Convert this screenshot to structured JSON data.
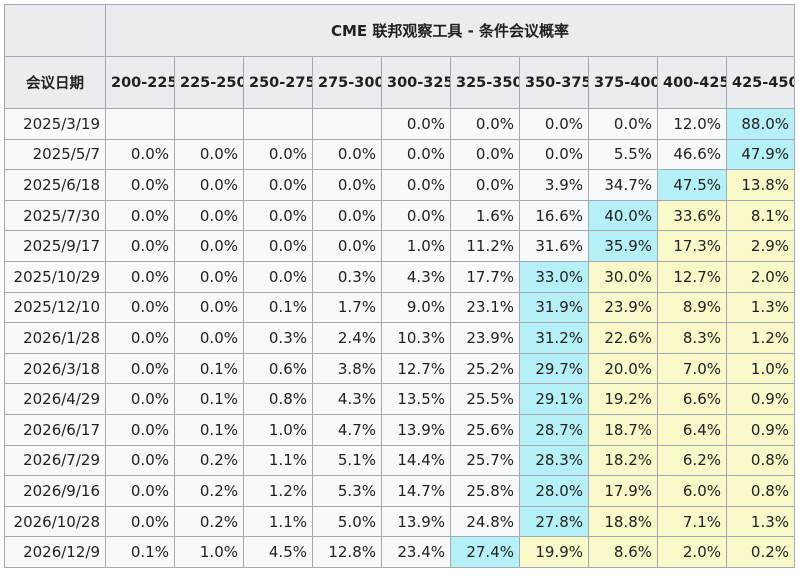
{
  "table": {
    "title": "CME 联邦观察工具 - 条件会议概率",
    "date_header": "会议日期",
    "columns": [
      "200-225",
      "225-250",
      "250-275",
      "275-300",
      "300-325",
      "325-350",
      "350-375",
      "375-400",
      "400-425",
      "425-450"
    ],
    "rows": [
      {
        "date": "2025/3/19",
        "values": [
          "",
          "",
          "",
          "",
          "0.0%",
          "0.0%",
          "0.0%",
          "0.0%",
          "12.0%",
          "88.0%"
        ],
        "highlight_max": 9
      },
      {
        "date": "2025/5/7",
        "values": [
          "0.0%",
          "0.0%",
          "0.0%",
          "0.0%",
          "0.0%",
          "0.0%",
          "0.0%",
          "5.5%",
          "46.6%",
          "47.9%"
        ],
        "highlight_max": 9
      },
      {
        "date": "2025/6/18",
        "values": [
          "0.0%",
          "0.0%",
          "0.0%",
          "0.0%",
          "0.0%",
          "0.0%",
          "3.9%",
          "34.7%",
          "47.5%",
          "13.8%"
        ],
        "highlight_max": 8
      },
      {
        "date": "2025/7/30",
        "values": [
          "0.0%",
          "0.0%",
          "0.0%",
          "0.0%",
          "0.0%",
          "1.6%",
          "16.6%",
          "40.0%",
          "33.6%",
          "8.1%"
        ],
        "highlight_max": 7
      },
      {
        "date": "2025/9/17",
        "values": [
          "0.0%",
          "0.0%",
          "0.0%",
          "0.0%",
          "1.0%",
          "11.2%",
          "31.6%",
          "35.9%",
          "17.3%",
          "2.9%"
        ],
        "highlight_max": 7
      },
      {
        "date": "2025/10/29",
        "values": [
          "0.0%",
          "0.0%",
          "0.0%",
          "0.3%",
          "4.3%",
          "17.7%",
          "33.0%",
          "30.0%",
          "12.7%",
          "2.0%"
        ],
        "highlight_max": 6
      },
      {
        "date": "2025/12/10",
        "values": [
          "0.0%",
          "0.0%",
          "0.1%",
          "1.7%",
          "9.0%",
          "23.1%",
          "31.9%",
          "23.9%",
          "8.9%",
          "1.3%"
        ],
        "highlight_max": 6
      },
      {
        "date": "2026/1/28",
        "values": [
          "0.0%",
          "0.0%",
          "0.3%",
          "2.4%",
          "10.3%",
          "23.9%",
          "31.2%",
          "22.6%",
          "8.3%",
          "1.2%"
        ],
        "highlight_max": 6
      },
      {
        "date": "2026/3/18",
        "values": [
          "0.0%",
          "0.1%",
          "0.6%",
          "3.8%",
          "12.7%",
          "25.2%",
          "29.7%",
          "20.0%",
          "7.0%",
          "1.0%"
        ],
        "highlight_max": 6
      },
      {
        "date": "2026/4/29",
        "values": [
          "0.0%",
          "0.1%",
          "0.8%",
          "4.3%",
          "13.5%",
          "25.5%",
          "29.1%",
          "19.2%",
          "6.6%",
          "0.9%"
        ],
        "highlight_max": 6
      },
      {
        "date": "2026/6/17",
        "values": [
          "0.0%",
          "0.1%",
          "1.0%",
          "4.7%",
          "13.9%",
          "25.6%",
          "28.7%",
          "18.7%",
          "6.4%",
          "0.9%"
        ],
        "highlight_max": 6
      },
      {
        "date": "2026/7/29",
        "values": [
          "0.0%",
          "0.2%",
          "1.1%",
          "5.1%",
          "14.4%",
          "25.7%",
          "28.3%",
          "18.2%",
          "6.2%",
          "0.8%"
        ],
        "highlight_max": 6
      },
      {
        "date": "2026/9/16",
        "values": [
          "0.0%",
          "0.2%",
          "1.2%",
          "5.3%",
          "14.7%",
          "25.8%",
          "28.0%",
          "17.9%",
          "6.0%",
          "0.8%"
        ],
        "highlight_max": 6
      },
      {
        "date": "2026/10/28",
        "values": [
          "0.0%",
          "0.2%",
          "1.1%",
          "5.0%",
          "13.9%",
          "24.8%",
          "27.8%",
          "18.8%",
          "7.1%",
          "1.3%"
        ],
        "highlight_max": 6
      },
      {
        "date": "2026/12/9",
        "values": [
          "0.1%",
          "1.0%",
          "4.5%",
          "12.8%",
          "23.4%",
          "27.4%",
          "19.9%",
          "8.6%",
          "2.0%",
          "0.2%"
        ],
        "highlight_max": 5
      }
    ]
  },
  "colors": {
    "max_cell": "#b4f0f6",
    "above_max_cell": "#f8f8c8",
    "default_cell": "#f8f9fa",
    "header": "#eaecf0",
    "border": "#a2a9b1"
  },
  "chart_data": {
    "type": "table",
    "title": "CME 联邦观察工具 - 条件会议概率",
    "row_label": "会议日期",
    "columns": [
      "200-225",
      "225-250",
      "250-275",
      "275-300",
      "300-325",
      "325-350",
      "350-375",
      "375-400",
      "400-425",
      "425-450"
    ]
  }
}
